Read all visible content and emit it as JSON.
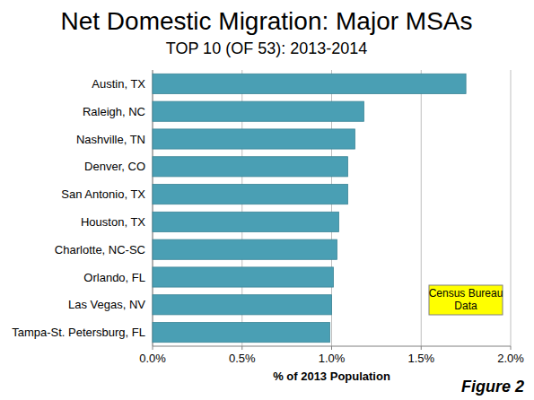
{
  "chart_data": {
    "type": "bar",
    "orientation": "horizontal",
    "title": "Net Domestic Migration: Major MSAs",
    "subtitle": "TOP 10 (OF 53): 2013-2014",
    "x_label": "% of 2013 Population",
    "categories": [
      "Austin, TX",
      "Raleigh, NC",
      "Nashville, TN",
      "Denver, CO",
      "San Antonio, TX",
      "Houston, TX",
      "Charlotte, NC-SC",
      "Orlando, FL",
      "Las Vegas, NV",
      "Tampa-St. Petersburg, FL"
    ],
    "values": [
      1.75,
      1.18,
      1.13,
      1.09,
      1.09,
      1.04,
      1.03,
      1.01,
      1.0,
      0.99
    ],
    "color": "#4a9fb4",
    "xlim": [
      0,
      2
    ],
    "xticks": [
      {
        "value": 0,
        "label": "0.0%"
      },
      {
        "value": 0.5,
        "label": "0.5%"
      },
      {
        "value": 1,
        "label": "1.0%"
      },
      {
        "value": 1.5,
        "label": "1.5%"
      },
      {
        "value": 2,
        "label": "2.0%"
      }
    ],
    "grid": true,
    "annotations": [
      "Census Bureau Data",
      "Figure 2"
    ]
  }
}
